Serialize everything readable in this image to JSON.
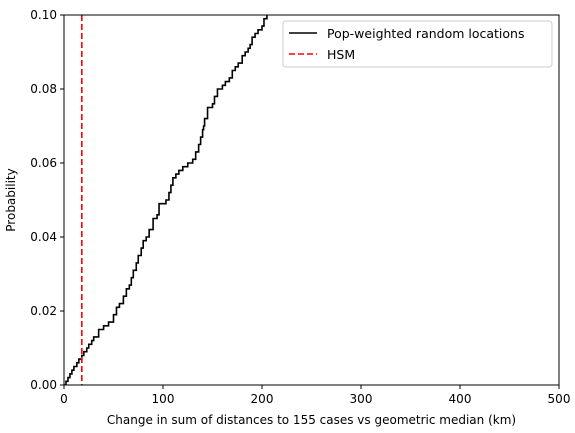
{
  "chart_data": {
    "type": "line",
    "xlabel": "Change in sum of distances to 155 cases vs geometric median (km)",
    "ylabel": "Probability",
    "xlim": [
      0,
      500
    ],
    "ylim": [
      0,
      0.1
    ],
    "xticks": [
      0,
      100,
      200,
      300,
      400,
      500
    ],
    "xtick_labels": [
      "0",
      "100",
      "200",
      "300",
      "400",
      "500"
    ],
    "yticks": [
      0,
      0.02,
      0.04,
      0.06,
      0.08,
      0.1
    ],
    "ytick_labels": [
      "0.00",
      "0.02",
      "0.04",
      "0.06",
      "0.08",
      "0.10"
    ],
    "grid": false,
    "legend_position": "top-right",
    "series": [
      {
        "name": "Pop-weighted random locations",
        "color": "#000000",
        "style": "solid-step",
        "x": [
          0,
          2,
          4,
          6,
          8,
          10,
          13,
          15,
          18,
          20,
          23,
          25,
          28,
          30,
          35,
          40,
          45,
          50,
          53,
          56,
          60,
          63,
          66,
          68,
          70,
          73,
          75,
          78,
          80,
          83,
          86,
          90,
          94,
          96,
          100,
          103,
          106,
          108,
          110,
          113,
          116,
          120,
          125,
          130,
          133,
          136,
          138,
          140,
          141,
          142,
          145,
          150,
          152,
          155,
          160,
          163,
          167,
          170,
          173,
          176,
          180,
          183,
          186,
          188,
          190,
          193,
          196,
          200,
          202,
          205
        ],
        "y": [
          0.0,
          0.001,
          0.002,
          0.003,
          0.004,
          0.005,
          0.006,
          0.007,
          0.008,
          0.009,
          0.01,
          0.011,
          0.012,
          0.013,
          0.015,
          0.016,
          0.017,
          0.019,
          0.021,
          0.022,
          0.024,
          0.026,
          0.027,
          0.029,
          0.031,
          0.033,
          0.035,
          0.037,
          0.039,
          0.04,
          0.042,
          0.045,
          0.046,
          0.049,
          0.049,
          0.05,
          0.052,
          0.054,
          0.056,
          0.057,
          0.058,
          0.059,
          0.06,
          0.061,
          0.063,
          0.065,
          0.067,
          0.069,
          0.07,
          0.072,
          0.075,
          0.076,
          0.078,
          0.08,
          0.081,
          0.082,
          0.083,
          0.085,
          0.086,
          0.087,
          0.089,
          0.09,
          0.091,
          0.092,
          0.094,
          0.095,
          0.096,
          0.097,
          0.099,
          0.1
        ]
      },
      {
        "name": "HSM",
        "color": "#ff0000",
        "style": "dashed-vertical",
        "x_value": 18
      }
    ]
  }
}
